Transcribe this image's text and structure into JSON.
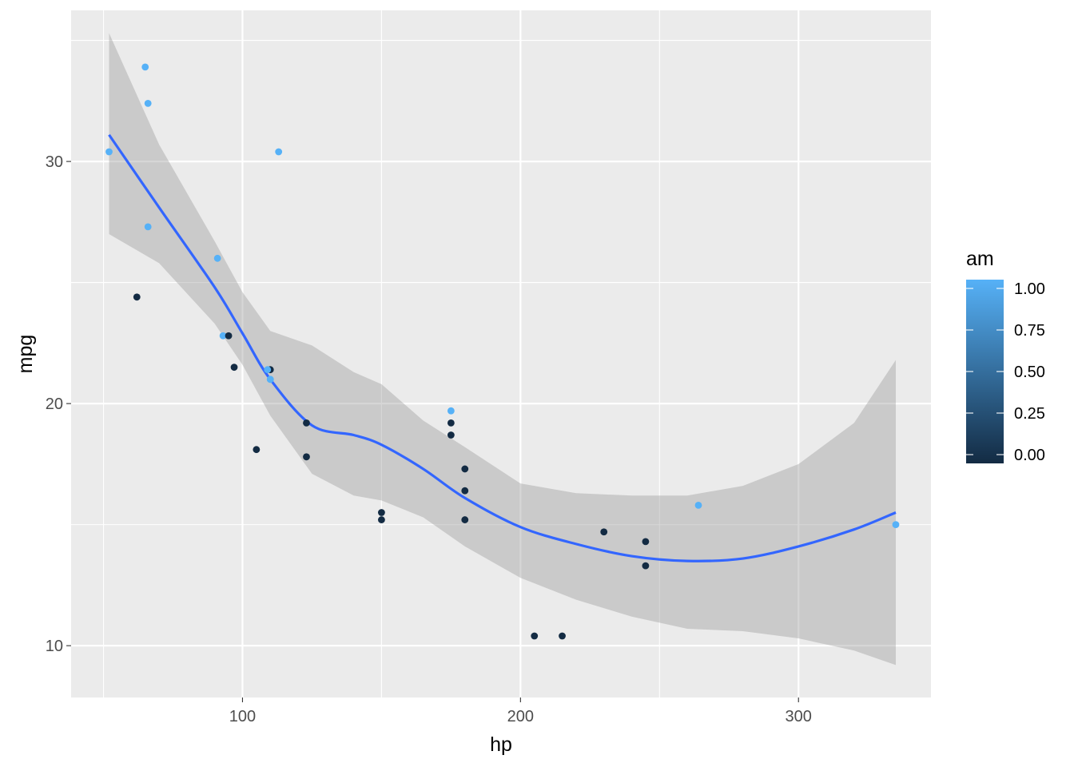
{
  "chart_data": {
    "type": "scatter",
    "title": "",
    "xlabel": "hp",
    "ylabel": "mpg",
    "xlim": [
      38.35,
      347.65
    ],
    "ylim": [
      7.86,
      36.24
    ],
    "x_ticks": [
      100,
      200,
      300
    ],
    "y_ticks": [
      10,
      20,
      30
    ],
    "grid": true,
    "background": "#EBEBEB",
    "color_variable": "am",
    "color_scale": {
      "low": "#132B43",
      "high": "#56B1F7",
      "min": 0,
      "max": 1
    },
    "legend": {
      "title": "am",
      "placement": "right",
      "labels": [
        "0.00",
        "0.25",
        "0.50",
        "0.75",
        "1.00"
      ],
      "values": [
        0,
        0.25,
        0.5,
        0.75,
        1
      ]
    },
    "points": [
      {
        "x": 110,
        "y": 21.0,
        "am": 1
      },
      {
        "x": 110,
        "y": 21.0,
        "am": 1
      },
      {
        "x": 93,
        "y": 22.8,
        "am": 1
      },
      {
        "x": 110,
        "y": 21.4,
        "am": 0
      },
      {
        "x": 175,
        "y": 18.7,
        "am": 0
      },
      {
        "x": 105,
        "y": 18.1,
        "am": 0
      },
      {
        "x": 245,
        "y": 14.3,
        "am": 0
      },
      {
        "x": 62,
        "y": 24.4,
        "am": 0
      },
      {
        "x": 95,
        "y": 22.8,
        "am": 0
      },
      {
        "x": 123,
        "y": 19.2,
        "am": 0
      },
      {
        "x": 123,
        "y": 17.8,
        "am": 0
      },
      {
        "x": 180,
        "y": 16.4,
        "am": 0
      },
      {
        "x": 180,
        "y": 17.3,
        "am": 0
      },
      {
        "x": 180,
        "y": 15.2,
        "am": 0
      },
      {
        "x": 205,
        "y": 10.4,
        "am": 0
      },
      {
        "x": 215,
        "y": 10.4,
        "am": 0
      },
      {
        "x": 230,
        "y": 14.7,
        "am": 0
      },
      {
        "x": 66,
        "y": 32.4,
        "am": 1
      },
      {
        "x": 52,
        "y": 30.4,
        "am": 1
      },
      {
        "x": 65,
        "y": 33.9,
        "am": 1
      },
      {
        "x": 97,
        "y": 21.5,
        "am": 0
      },
      {
        "x": 150,
        "y": 15.5,
        "am": 0
      },
      {
        "x": 150,
        "y": 15.2,
        "am": 0
      },
      {
        "x": 245,
        "y": 13.3,
        "am": 0
      },
      {
        "x": 175,
        "y": 19.2,
        "am": 0
      },
      {
        "x": 66,
        "y": 27.3,
        "am": 1
      },
      {
        "x": 91,
        "y": 26.0,
        "am": 1
      },
      {
        "x": 113,
        "y": 30.4,
        "am": 1
      },
      {
        "x": 264,
        "y": 15.8,
        "am": 1
      },
      {
        "x": 175,
        "y": 19.7,
        "am": 1
      },
      {
        "x": 335,
        "y": 15.0,
        "am": 1
      },
      {
        "x": 109,
        "y": 21.4,
        "am": 1
      }
    ],
    "smooth": {
      "method": "loess",
      "color": "#3366FF",
      "band_color": "#999999",
      "x": [
        52,
        70,
        90,
        100,
        110,
        125,
        140,
        150,
        165,
        180,
        200,
        220,
        240,
        260,
        280,
        300,
        320,
        335
      ],
      "y": [
        31.1,
        28.1,
        24.8,
        22.9,
        21.0,
        19.1,
        18.7,
        18.3,
        17.3,
        16.1,
        14.9,
        14.2,
        13.7,
        13.5,
        13.6,
        14.1,
        14.8,
        15.5
      ],
      "lower": [
        27.0,
        25.8,
        23.3,
        21.6,
        19.5,
        17.1,
        16.2,
        16.0,
        15.3,
        14.1,
        12.8,
        11.9,
        11.2,
        10.7,
        10.6,
        10.3,
        9.8,
        9.2
      ],
      "upper": [
        35.3,
        30.7,
        26.7,
        24.6,
        23.0,
        22.4,
        21.3,
        20.8,
        19.3,
        18.2,
        16.7,
        16.3,
        16.2,
        16.2,
        16.6,
        17.5,
        19.2,
        21.8
      ]
    }
  }
}
